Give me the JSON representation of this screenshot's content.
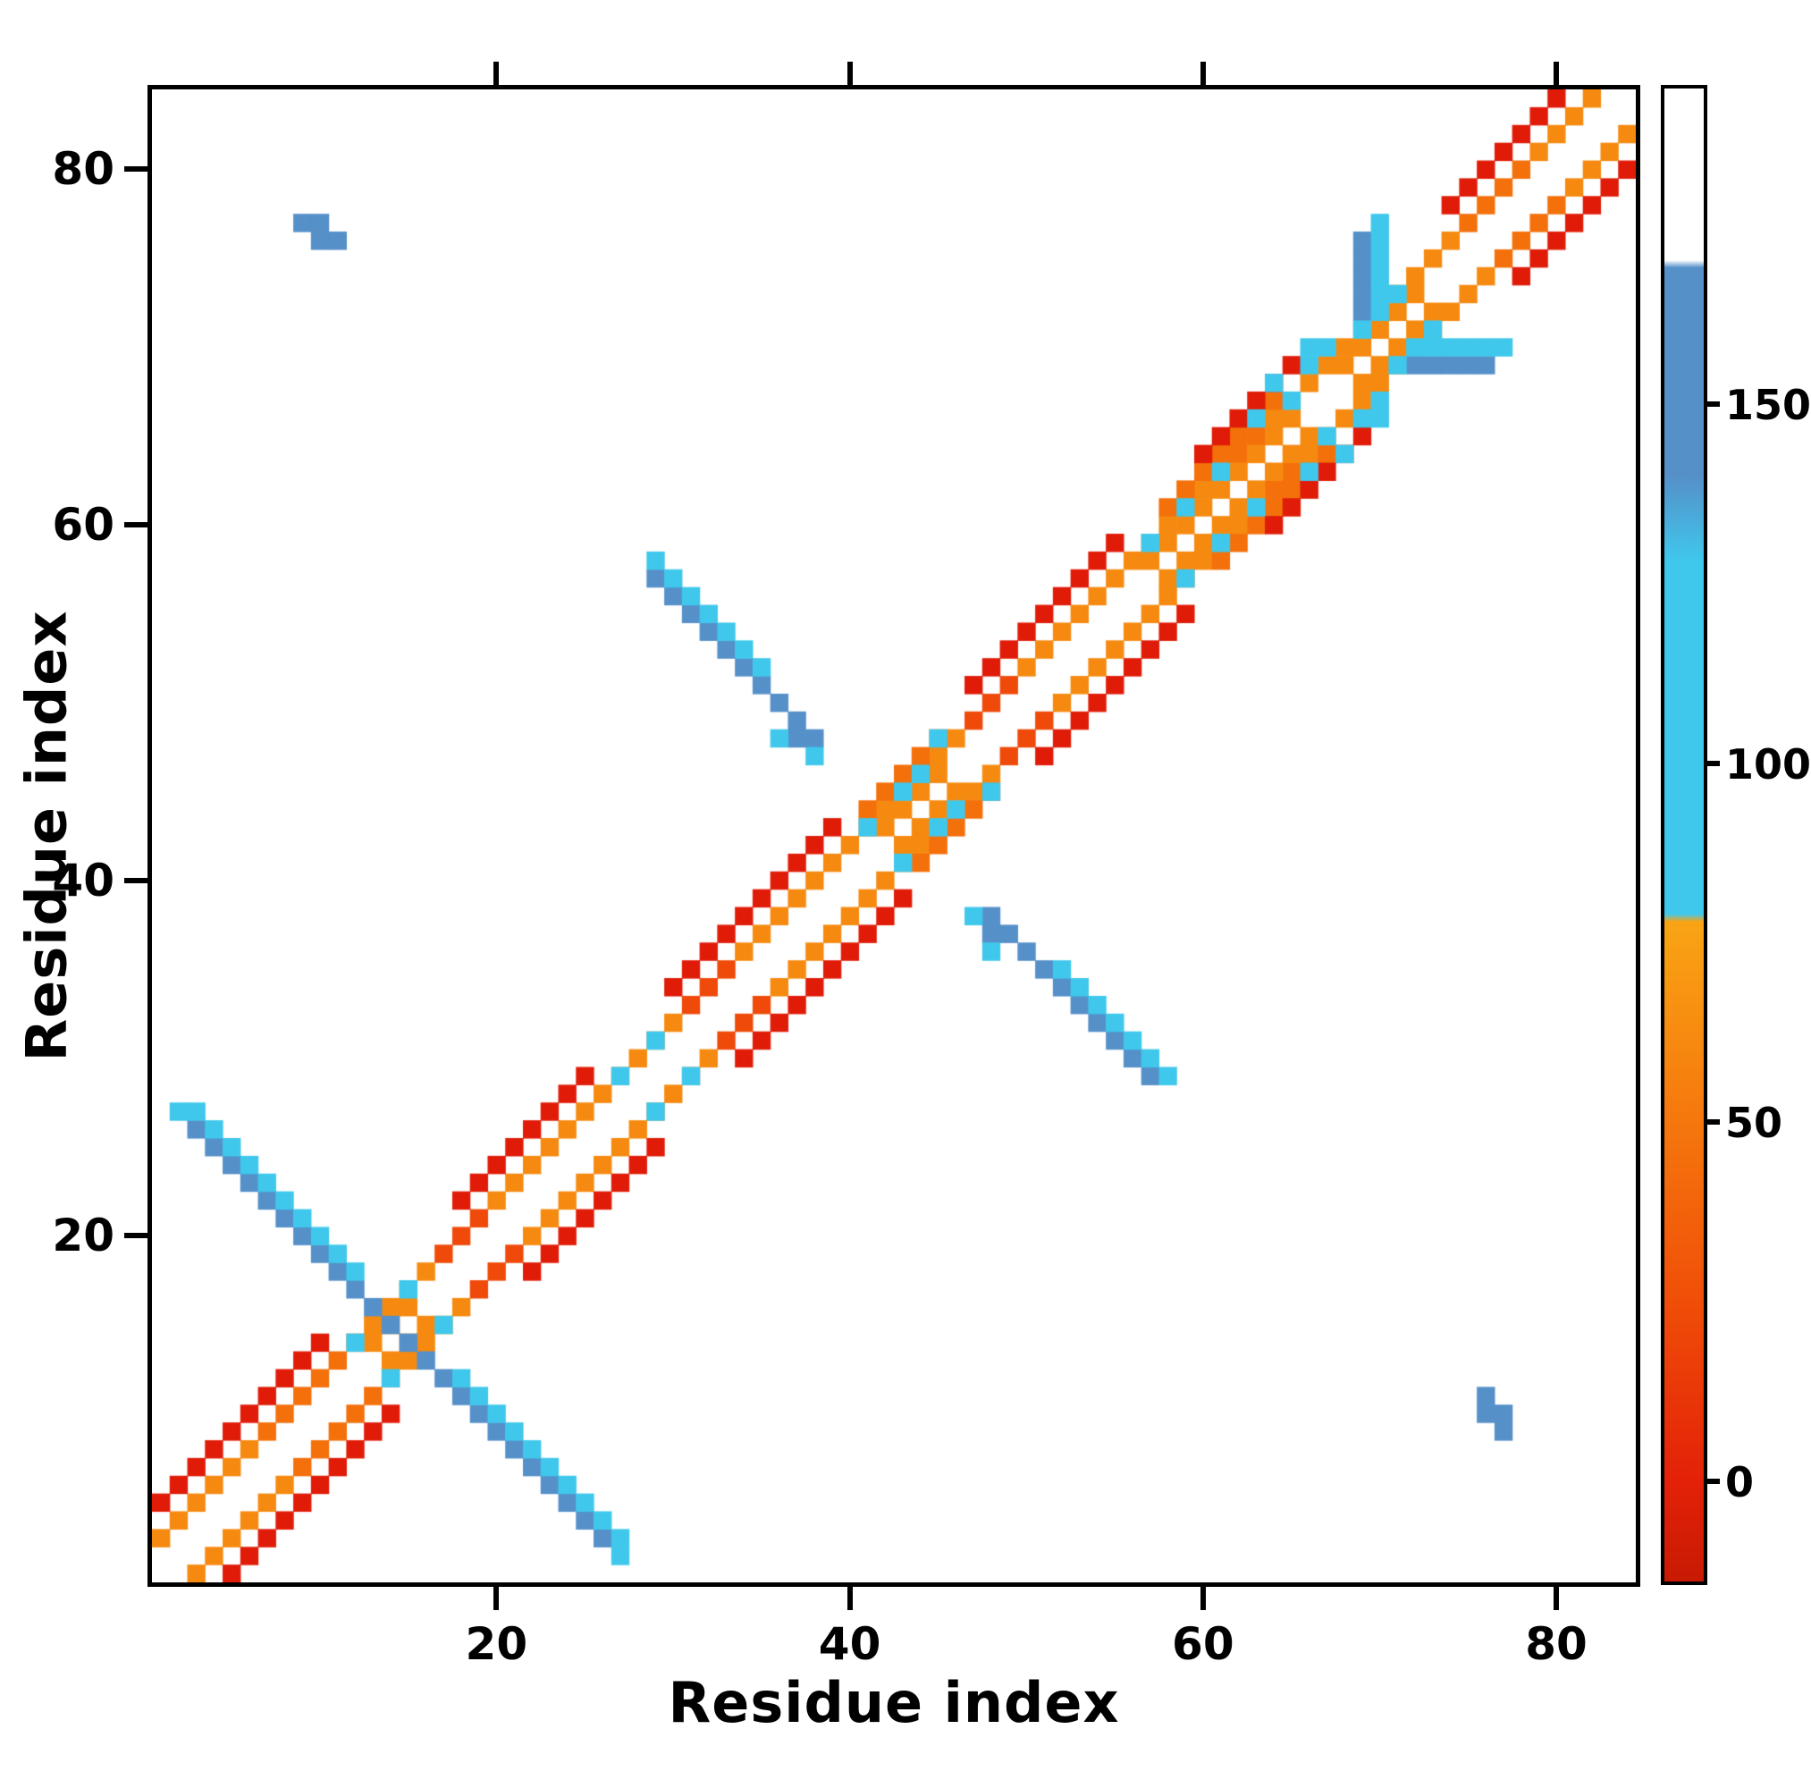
{
  "figure": {
    "background": "#ffffff"
  },
  "chart_data": {
    "type": "heatmap",
    "title": "",
    "xlabel": "Residue index",
    "ylabel": "Residue index",
    "xlim": [
      0.5,
      84.5
    ],
    "ylim": [
      0.5,
      84.5
    ],
    "x_ticks": [
      20,
      40,
      60,
      80
    ],
    "y_ticks": [
      20,
      40,
      60,
      80
    ],
    "grid": false,
    "symmetric": true,
    "background_value": "white",
    "color_scale": {
      "breaks": [
        {
          "max": 12,
          "color": "#e01c08"
        },
        {
          "max": 25,
          "color": "#ef4a09"
        },
        {
          "max": 38,
          "color": "#f4700b"
        },
        {
          "max": 60,
          "color": "#f68a10"
        },
        {
          "max": 78,
          "color": "#f9a414"
        },
        {
          "max": 132,
          "color": "#3fc8ec"
        },
        {
          "max": 170,
          "color": "#5590c9"
        },
        {
          "max": 9999,
          "color": "#ffffff"
        }
      ]
    },
    "colorbar": {
      "ticks": [
        150,
        100,
        50,
        0
      ],
      "vmin": -14,
      "vmax": 194,
      "stops": [
        [
          0,
          "#c81a03"
        ],
        [
          6.7,
          "#e32108"
        ],
        [
          18.7,
          "#f04e08"
        ],
        [
          33.2,
          "#f67f0e"
        ],
        [
          44.2,
          "#f9a414"
        ],
        [
          44.7,
          "#3fc8ec"
        ],
        [
          68.3,
          "#3fc8ec"
        ],
        [
          74.0,
          "#5590c9"
        ],
        [
          88.0,
          "#5590c9"
        ],
        [
          88.5,
          "#ffffff"
        ],
        [
          100,
          "#ffffff"
        ]
      ]
    },
    "band_runs": [
      [
        1,
        6,
        2,
        45
      ],
      [
        7,
        12,
        2,
        30
      ],
      [
        13,
        16,
        2,
        55
      ],
      [
        17,
        19,
        2,
        16
      ],
      [
        20,
        26,
        2,
        42
      ],
      [
        27,
        30,
        2,
        50
      ],
      [
        31,
        33,
        2,
        16
      ],
      [
        34,
        40,
        2,
        45
      ],
      [
        41,
        46,
        2,
        52
      ],
      [
        47,
        49,
        2,
        16
      ],
      [
        50,
        56,
        2,
        42
      ],
      [
        57,
        60,
        2,
        50
      ],
      [
        61,
        63,
        2,
        30
      ],
      [
        64,
        66,
        2,
        45
      ],
      [
        67,
        70,
        2,
        50
      ],
      [
        71,
        74,
        2,
        40
      ],
      [
        75,
        78,
        2,
        30
      ],
      [
        79,
        82,
        2,
        45
      ],
      [
        13,
        15,
        1,
        50
      ],
      [
        42,
        45,
        1,
        48
      ],
      [
        57,
        65,
        1,
        48
      ],
      [
        68,
        72,
        1,
        50
      ],
      [
        41,
        45,
        3,
        35
      ],
      [
        58,
        64,
        3,
        35
      ],
      [
        1,
        10,
        4,
        6
      ],
      [
        18,
        25,
        4,
        6
      ],
      [
        30,
        39,
        4,
        6
      ],
      [
        47,
        55,
        4,
        6
      ],
      [
        60,
        65,
        4,
        6
      ],
      [
        74,
        80,
        4,
        6
      ]
    ],
    "anti_diagonal_runs": [
      [
        3,
        14,
        29,
        150
      ],
      [
        4,
        12,
        30,
        118
      ],
      [
        29,
        38,
        86,
        150
      ],
      [
        29,
        35,
        87,
        118
      ]
    ],
    "column_runs": [
      [
        69,
        72,
        76,
        148
      ],
      [
        70,
        72,
        77,
        115
      ]
    ],
    "cells": [
      [
        9,
        77,
        152
      ],
      [
        10,
        77,
        152
      ],
      [
        10,
        76,
        152
      ],
      [
        11,
        76,
        152
      ],
      [
        2,
        27,
        112
      ],
      [
        3,
        27,
        112
      ],
      [
        38,
        47,
        112
      ],
      [
        37,
        48,
        135
      ],
      [
        36,
        48,
        118
      ],
      [
        66,
        70,
        118
      ],
      [
        66,
        69,
        112
      ],
      [
        67,
        70,
        115
      ],
      [
        12,
        14,
        105
      ],
      [
        15,
        17,
        105
      ],
      [
        27,
        29,
        105
      ],
      [
        29,
        31,
        105
      ],
      [
        41,
        43,
        105
      ],
      [
        43,
        45,
        100
      ],
      [
        44,
        46,
        105
      ],
      [
        45,
        48,
        108
      ],
      [
        57,
        59,
        105
      ],
      [
        59,
        61,
        105
      ],
      [
        61,
        63,
        108
      ],
      [
        63,
        66,
        105
      ],
      [
        65,
        67,
        105
      ],
      [
        64,
        68,
        108
      ],
      [
        69,
        71,
        105
      ],
      [
        71,
        73,
        105
      ]
    ]
  }
}
